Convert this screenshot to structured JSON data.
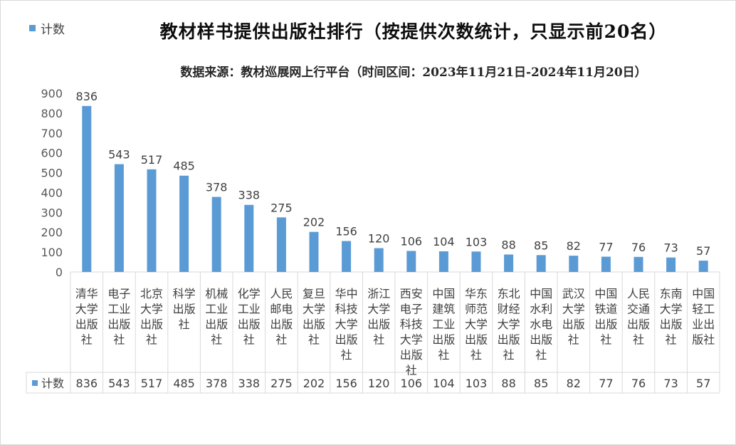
{
  "legend": {
    "label": "计数",
    "color": "#5b9bd5"
  },
  "chart_data": {
    "type": "bar",
    "title": "教材样书提供出版社排行（按提供次数统计，只显示前20名）",
    "subtitle": "数据来源：教材巡展网上行平台（时间区间：2023年11月21日-2024年11月20日）",
    "series_name": "计数",
    "ylim": [
      0,
      900
    ],
    "yticks": [
      "0",
      "100",
      "200",
      "300",
      "400",
      "500",
      "600",
      "700",
      "800",
      "900"
    ],
    "grid": false,
    "legend_position": "top-left",
    "data_table": true,
    "categories": [
      [
        "清华",
        "大学",
        "出版",
        "社"
      ],
      [
        "电子",
        "工业",
        "出版",
        "社"
      ],
      [
        "北京",
        "大学",
        "出版",
        "社"
      ],
      [
        "科学",
        "出版",
        "社"
      ],
      [
        "机械",
        "工业",
        "出版",
        "社"
      ],
      [
        "化学",
        "工业",
        "出版",
        "社"
      ],
      [
        "人民",
        "邮电",
        "出版",
        "社"
      ],
      [
        "复旦",
        "大学",
        "出版",
        "社"
      ],
      [
        "华中",
        "科技",
        "大学",
        "出版",
        "社"
      ],
      [
        "浙江",
        "大学",
        "出版",
        "社"
      ],
      [
        "西安",
        "电子",
        "科技",
        "大学",
        "出版",
        "社"
      ],
      [
        "中国",
        "建筑",
        "工业",
        "出版",
        "社"
      ],
      [
        "华东",
        "师范",
        "大学",
        "出版",
        "社"
      ],
      [
        "东北",
        "财经",
        "大学",
        "出版",
        "社"
      ],
      [
        "中国",
        "水利",
        "水电",
        "出版",
        "社"
      ],
      [
        "武汉",
        "大学",
        "出版",
        "社"
      ],
      [
        "中国",
        "铁道",
        "出版",
        "社"
      ],
      [
        "人民",
        "交通",
        "出版",
        "社"
      ],
      [
        "东南",
        "大学",
        "出版",
        "社"
      ],
      [
        "中国",
        "轻工",
        "业出",
        "版社"
      ]
    ],
    "values": [
      836,
      543,
      517,
      485,
      378,
      338,
      275,
      202,
      156,
      120,
      106,
      104,
      103,
      88,
      85,
      82,
      77,
      76,
      73,
      57
    ]
  }
}
